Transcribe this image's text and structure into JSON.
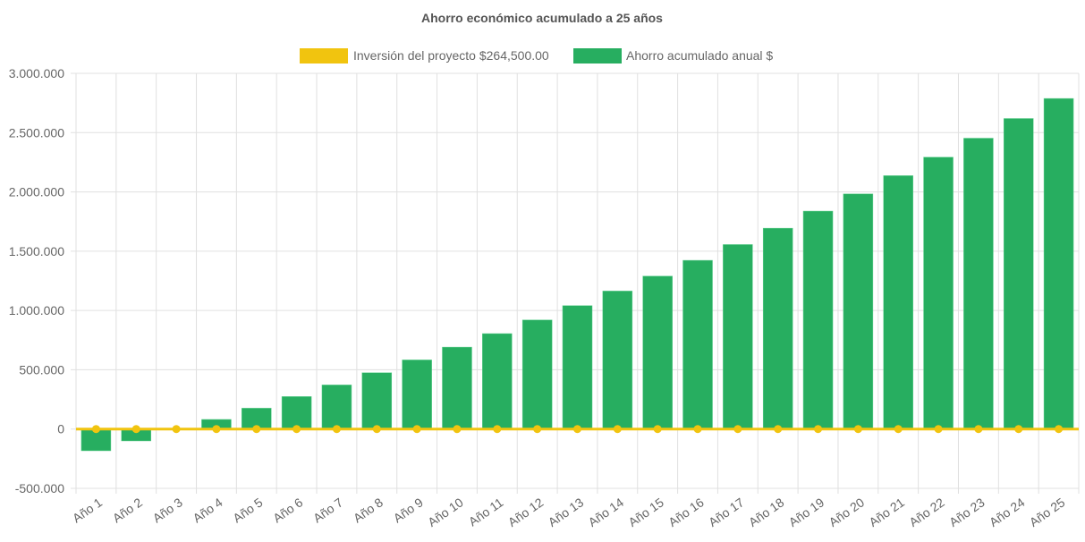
{
  "chart_data": {
    "type": "bar",
    "title": "Ahorro económico acumulado a 25 años",
    "legend_position": "top",
    "grid": true,
    "categories": [
      "Año 1",
      "Año 2",
      "Año 3",
      "Año 4",
      "Año 5",
      "Año 6",
      "Año 7",
      "Año 8",
      "Año 9",
      "Año 10",
      "Año 11",
      "Año 12",
      "Año 13",
      "Año 14",
      "Año 15",
      "Año 16",
      "Año 17",
      "Año 18",
      "Año 19",
      "Año 20",
      "Año 21",
      "Año 22",
      "Año 23",
      "Año 24",
      "Año 25"
    ],
    "ylim": [
      -500000,
      3000000
    ],
    "yticks": [
      3000000,
      2500000,
      2000000,
      1500000,
      1000000,
      500000,
      0,
      -500000
    ],
    "ytick_labels": [
      "3.000.000",
      "2.500.000",
      "2.000.000",
      "1.500.000",
      "1.000.000",
      "500.000",
      "0",
      "-500.000"
    ],
    "series": [
      {
        "name": "Inversión del proyecto $264,500.00",
        "type": "line",
        "color": "#f1c40f",
        "values": [
          0,
          0,
          0,
          0,
          0,
          0,
          0,
          0,
          0,
          0,
          0,
          0,
          0,
          0,
          0,
          0,
          0,
          0,
          0,
          0,
          0,
          0,
          0,
          0,
          0
        ]
      },
      {
        "name": "Ahorro acumulado anual $",
        "type": "bar",
        "color": "#27ae60",
        "values": [
          -183000,
          -100000,
          0,
          81000,
          176000,
          274000,
          372000,
          475000,
          583000,
          691000,
          805000,
          920000,
          1041000,
          1164000,
          1290000,
          1423000,
          1556000,
          1694000,
          1838000,
          1983000,
          2137000,
          2293000,
          2453000,
          2619000,
          2788000
        ]
      }
    ]
  }
}
